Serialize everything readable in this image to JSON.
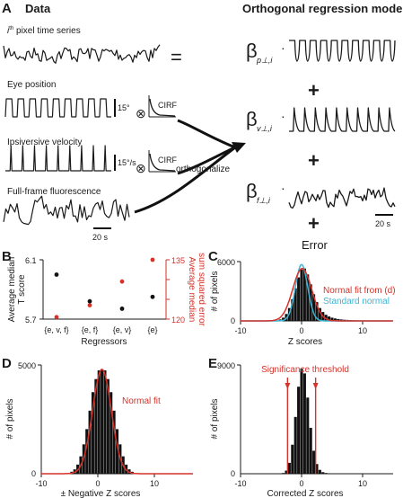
{
  "panel_A": {
    "label": "A",
    "data_header": "Data",
    "model_header": "Orthogonal regression model",
    "pixel_label": "i",
    "pixel_label_sup": "th",
    "pixel_label_rest": " pixel time series",
    "equals": "=",
    "eye_label": "Eye position",
    "eye_scale": "15°",
    "vel_label": "Ipsiversive velocity",
    "vel_scale": "15°/s",
    "fluor_label": "Full-frame fluorescence",
    "cirf1": "CIRF",
    "cirf2": "CIRF",
    "otimes": "⊗",
    "orthogonalize": "orthogonalize",
    "timebar_left": "20 s",
    "timebar_right": "20 s",
    "beta": "β",
    "sub_p": "p⊥,i",
    "sub_v": "v⊥,i",
    "sub_f": "f⊥,i",
    "dot": "·",
    "plus": "+",
    "error": "Error"
  },
  "panel_B": {
    "label": "B",
    "ylabel_left_1": "Average median",
    "ylabel_left_2": "T score",
    "ylabel_right_1": "Average median",
    "ylabel_right_2": "sum squared error",
    "xlabel": "Regressors",
    "left_ticks": [
      "6.1",
      "5.7"
    ],
    "right_ticks": [
      "135",
      "130",
      "125",
      "120"
    ],
    "categories": [
      "{e, v, f}",
      "{e, f}",
      "{e, v}",
      "{e}"
    ],
    "black_color": "#111111",
    "red_color": "#d6322a"
  },
  "panel_C": {
    "label": "C",
    "ylabel": "# of pixels",
    "xlabel": "Z scores",
    "y_ticks": [
      "6000",
      "0"
    ],
    "x_ticks": [
      "-10",
      "0",
      "10"
    ],
    "legend_red": "Normal fit from (d)",
    "legend_blue": "Standard normal",
    "red_color": "#d6322a",
    "blue_color": "#3ab5d6"
  },
  "panel_D": {
    "label": "D",
    "ylabel": "# of pixels",
    "xlabel": "± Negative Z scores",
    "y_ticks": [
      "5000",
      "0"
    ],
    "x_ticks": [
      "-10",
      "0",
      "10"
    ],
    "legend_red": "Normal fit"
  },
  "panel_E": {
    "label": "E",
    "ylabel": "# of pixels",
    "xlabel": "Corrected Z scores",
    "y_ticks": [
      "9000",
      "0"
    ],
    "x_ticks": [
      "-10",
      "0",
      "10"
    ],
    "threshold_label": "Significance threshold"
  },
  "chart_data": [
    {
      "type": "scatter",
      "panel": "B",
      "categories": [
        "{e, v, f}",
        "{e, f}",
        "{e, v}",
        "{e}"
      ],
      "series": [
        {
          "axis": "left",
          "color": "#111111",
          "values": [
            6.0,
            5.82,
            5.77,
            5.85
          ]
        },
        {
          "axis": "right",
          "color": "#d6322a",
          "values": [
            120.5,
            123.5,
            129.5,
            135
          ]
        }
      ],
      "ylim_left": [
        5.7,
        6.1
      ],
      "ylim_right": [
        120,
        135
      ],
      "xlabel": "Regressors"
    },
    {
      "type": "bar",
      "panel": "C",
      "x": [
        -5,
        -4.5,
        -4,
        -3.5,
        -3,
        -2.5,
        -2,
        -1.5,
        -1,
        -0.5,
        0,
        0.5,
        1,
        1.5,
        2,
        2.5,
        3,
        3.5,
        4,
        4.5,
        5,
        5.5,
        6,
        6.5,
        7,
        7.5,
        8,
        8.5,
        9,
        9.5,
        10,
        10.5,
        11,
        11.5,
        12,
        12.5,
        13,
        13.5,
        14,
        14.5
      ],
      "values": [
        5,
        20,
        60,
        150,
        330,
        700,
        1300,
        2200,
        3300,
        4400,
        5200,
        5300,
        4700,
        3700,
        2700,
        1900,
        1300,
        900,
        620,
        450,
        330,
        250,
        190,
        150,
        120,
        100,
        80,
        65,
        52,
        42,
        34,
        28,
        22,
        18,
        14,
        11,
        8,
        6,
        4,
        3
      ],
      "ylim": [
        0,
        6000
      ],
      "xlim": [
        -10,
        15
      ],
      "xlabel": "Z scores",
      "ylabel": "# of pixels"
    },
    {
      "type": "bar",
      "panel": "D",
      "x": [
        -6,
        -5.5,
        -5,
        -4.5,
        -4,
        -3.5,
        -3,
        -2.5,
        -2,
        -1.5,
        -1,
        -0.5,
        0,
        0.5,
        1,
        1.5,
        2,
        2.5,
        3,
        3.5,
        4,
        4.5,
        5,
        5.5,
        6
      ],
      "values": [
        10,
        30,
        90,
        200,
        420,
        800,
        1350,
        2050,
        2900,
        3750,
        4350,
        4750,
        4800,
        4750,
        4350,
        3750,
        2900,
        2050,
        1350,
        800,
        420,
        200,
        90,
        30,
        10
      ],
      "ylim": [
        0,
        5000
      ],
      "xlim": [
        -10,
        15
      ],
      "xlabel": "± Negative Z scores",
      "ylabel": "# of pixels"
    },
    {
      "type": "bar",
      "panel": "E",
      "x": [
        -3,
        -2.5,
        -2,
        -1.5,
        -1,
        -0.5,
        0,
        0.5,
        1,
        1.5,
        2,
        2.5,
        3,
        3.5,
        4,
        4.5,
        5
      ],
      "values": [
        60,
        260,
        900,
        2400,
        4700,
        7200,
        8700,
        8300,
        6300,
        3800,
        1900,
        800,
        320,
        130,
        60,
        30,
        15
      ],
      "ylim": [
        0,
        9000
      ],
      "xlim": [
        -10,
        15
      ],
      "threshold": [
        -2.3,
        2.3
      ],
      "xlabel": "Corrected Z scores",
      "ylabel": "# of pixels"
    }
  ]
}
